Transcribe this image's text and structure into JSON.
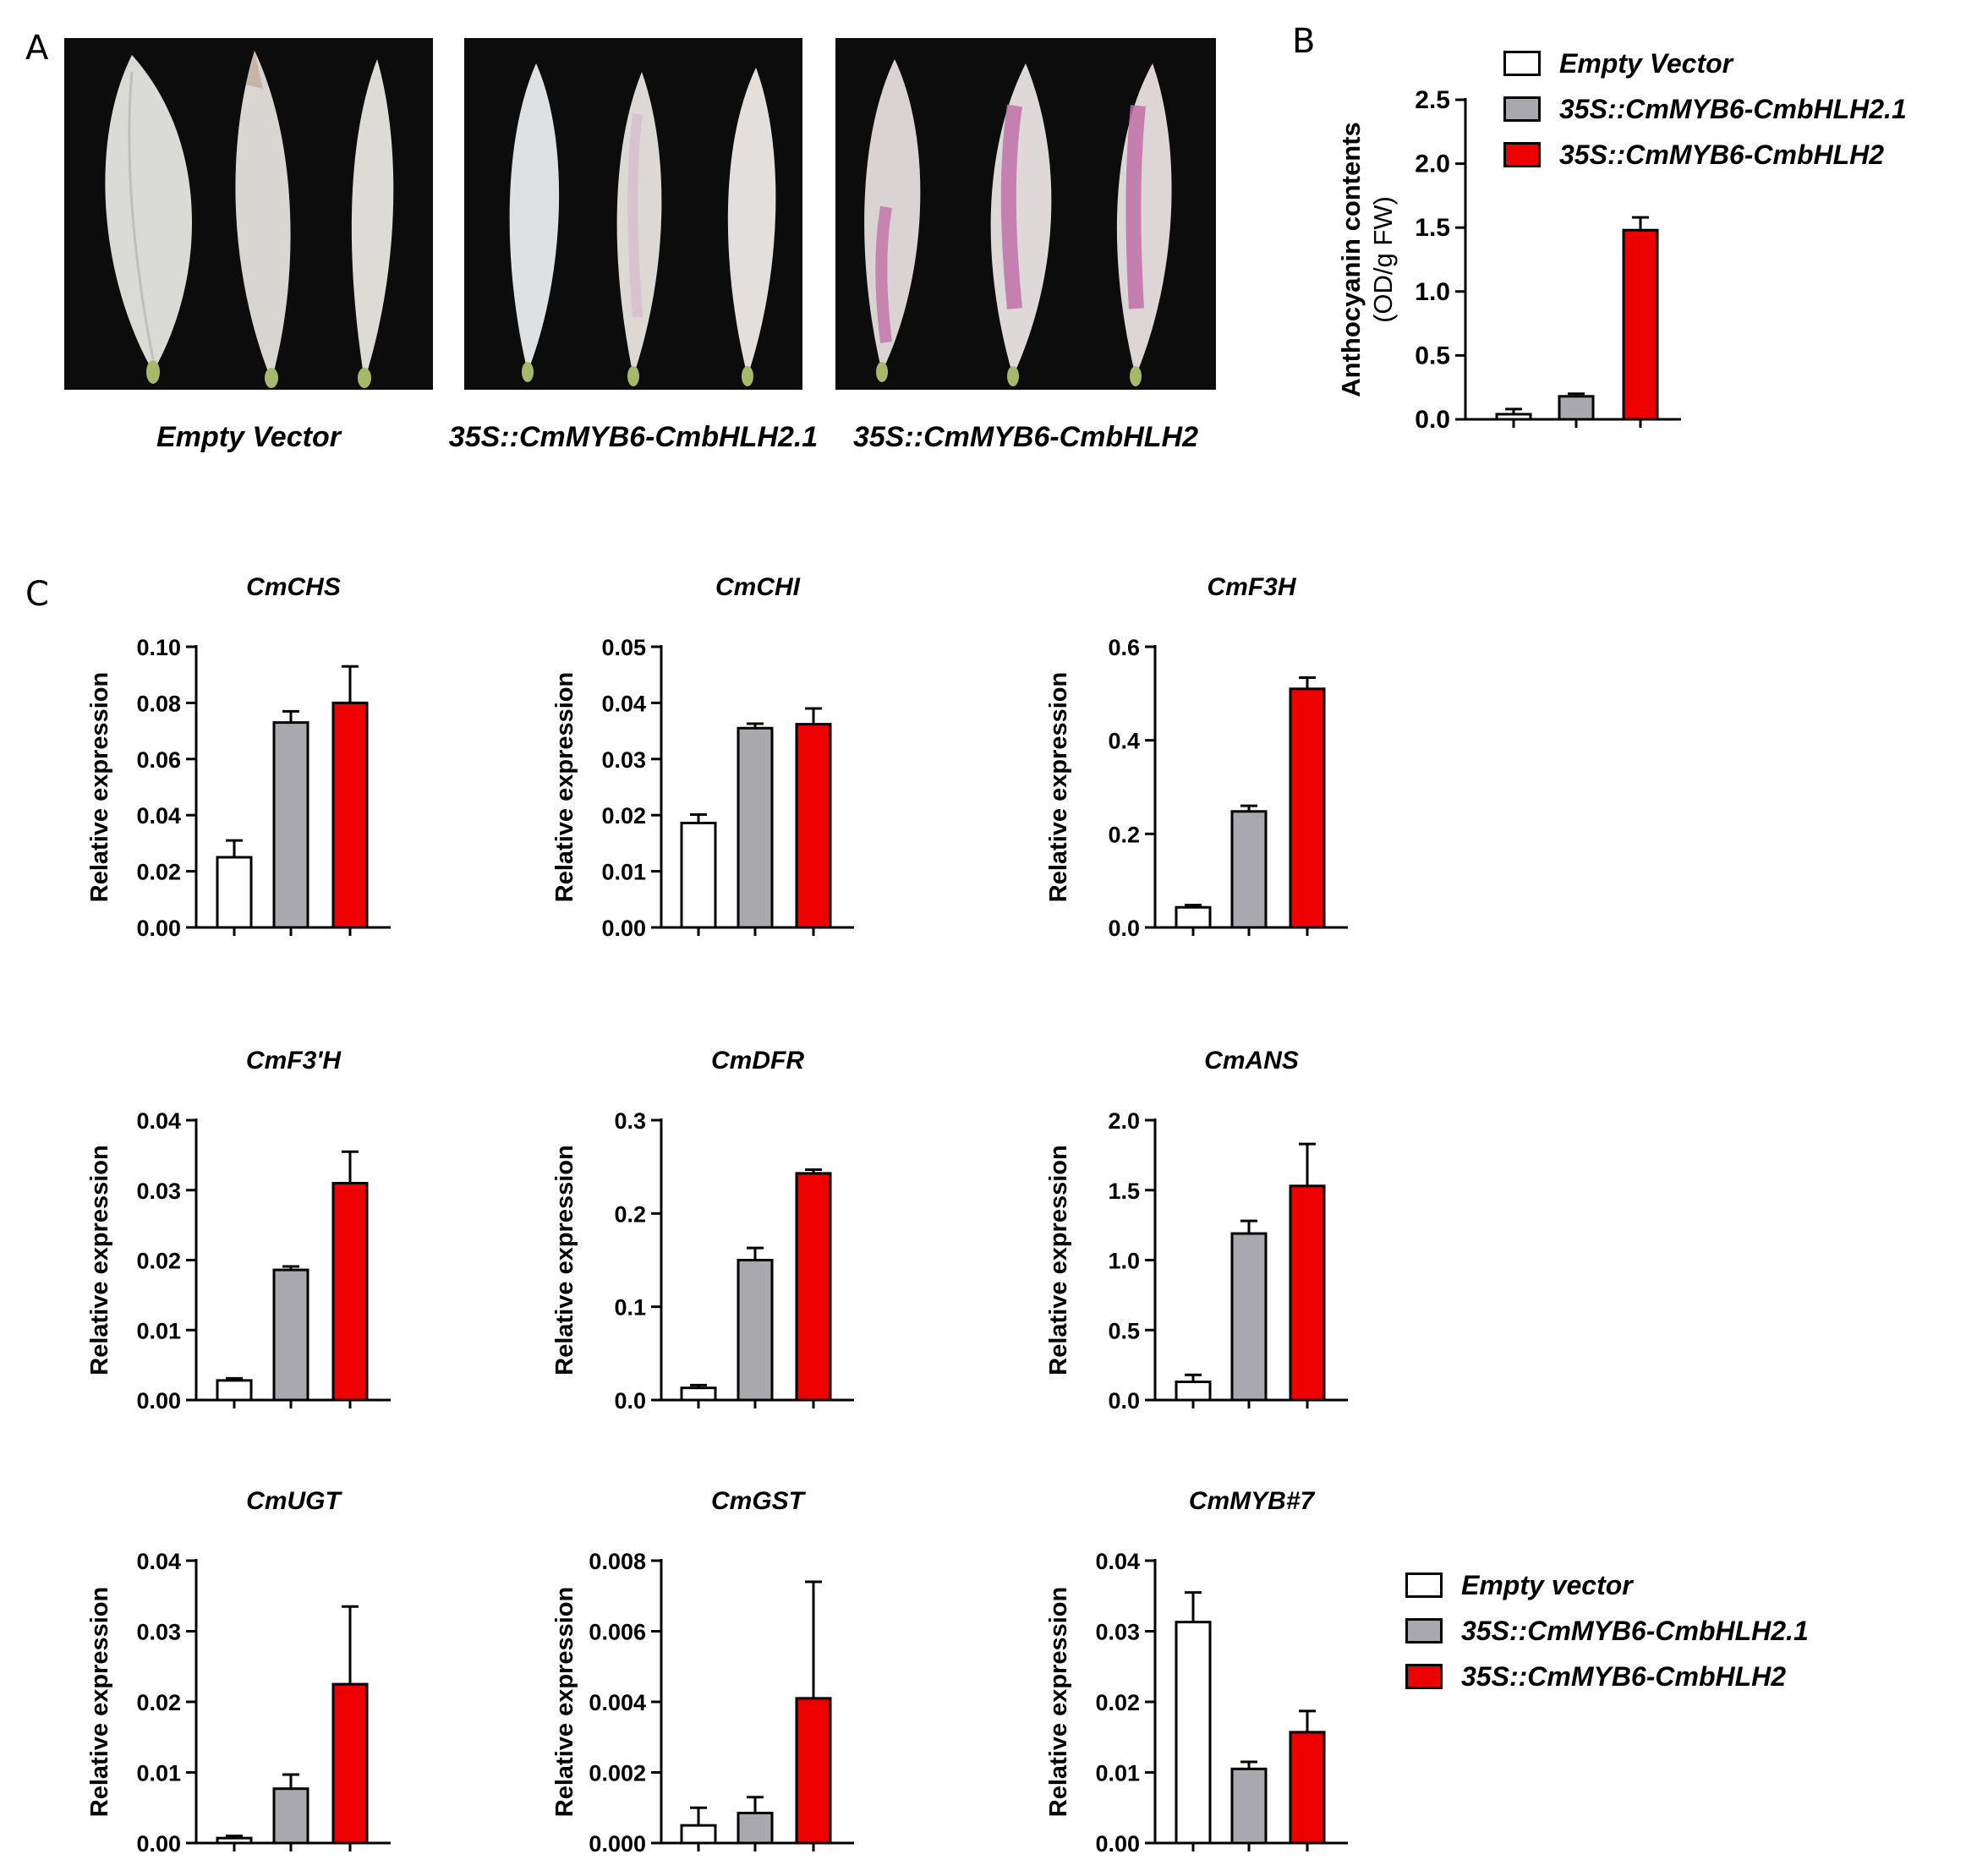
{
  "panel_labels": {
    "a": "A",
    "b": "B",
    "c": "C"
  },
  "photos": [
    {
      "label": "Empty Vector"
    },
    {
      "label": "35S::CmMYB6-CmbHLH2.1"
    },
    {
      "label": "35S::CmMYB6-CmbHLH2"
    }
  ],
  "legend_b": {
    "items": [
      {
        "label": "Empty Vector",
        "color": "#ffffff"
      },
      {
        "label": "35S::CmMYB6-CmbHLH2.1",
        "color": "#a9a9ad"
      },
      {
        "label": "35S::CmMYB6-CmbHLH2",
        "color": "#ee0000"
      }
    ]
  },
  "legend_c": {
    "items": [
      {
        "label": "Empty vector",
        "color": "#ffffff"
      },
      {
        "label": "35S::CmMYB6-CmbHLH2.1",
        "color": "#a9a9ad"
      },
      {
        "label": "35S::CmMYB6-CmbHLH2",
        "color": "#ee0000"
      }
    ]
  },
  "chart_data": [
    {
      "id": "B",
      "type": "bar",
      "title": "",
      "ylabel": [
        "Anthocyanin contents",
        "(OD/g FW)"
      ],
      "ylim": [
        0,
        2.5
      ],
      "ticks": [
        "0.0",
        "0.5",
        "1.0",
        "1.5",
        "2.0",
        "2.5"
      ],
      "values": [
        0.04,
        0.18,
        1.48
      ],
      "errors": [
        0.04,
        0.02,
        0.1
      ]
    },
    {
      "id": "CmCHS",
      "type": "bar",
      "title": "CmCHS",
      "ylabel": [
        "Relative expression"
      ],
      "ylim": [
        0,
        0.1
      ],
      "ticks": [
        "0.00",
        "0.02",
        "0.04",
        "0.06",
        "0.08",
        "0.10"
      ],
      "values": [
        0.025,
        0.073,
        0.08
      ],
      "errors": [
        0.006,
        0.004,
        0.013
      ]
    },
    {
      "id": "CmCHI",
      "type": "bar",
      "title": "CmCHI",
      "ylabel": [
        "Relative expression"
      ],
      "ylim": [
        0,
        0.05
      ],
      "ticks": [
        "0.00",
        "0.01",
        "0.02",
        "0.03",
        "0.04",
        "0.05"
      ],
      "values": [
        0.0186,
        0.0355,
        0.0362
      ],
      "errors": [
        0.0015,
        0.0008,
        0.0028
      ]
    },
    {
      "id": "CmF3H",
      "type": "bar",
      "title": "CmF3H",
      "ylabel": [
        "Relative expression"
      ],
      "ylim": [
        0,
        0.6
      ],
      "ticks": [
        "0.0",
        "0.2",
        "0.4",
        "0.6"
      ],
      "values": [
        0.043,
        0.248,
        0.51
      ],
      "errors": [
        0.005,
        0.012,
        0.024
      ]
    },
    {
      "id": "CmF3'H",
      "type": "bar",
      "title": "CmF3'H",
      "ylabel": [
        "Relative expression"
      ],
      "ylim": [
        0,
        0.04
      ],
      "ticks": [
        "0.00",
        "0.01",
        "0.02",
        "0.03",
        "0.04"
      ],
      "values": [
        0.0028,
        0.0186,
        0.031
      ],
      "errors": [
        0.0003,
        0.0005,
        0.0045
      ]
    },
    {
      "id": "CmDFR",
      "type": "bar",
      "title": "CmDFR",
      "ylabel": [
        "Relative expression"
      ],
      "ylim": [
        0,
        0.3
      ],
      "ticks": [
        "0.0",
        "0.1",
        "0.2",
        "0.3"
      ],
      "values": [
        0.013,
        0.15,
        0.243
      ],
      "errors": [
        0.003,
        0.013,
        0.004
      ]
    },
    {
      "id": "CmANS",
      "type": "bar",
      "title": "CmANS",
      "ylabel": [
        "Relative expression"
      ],
      "ylim": [
        0,
        2.0
      ],
      "ticks": [
        "0.0",
        "0.5",
        "1.0",
        "1.5",
        "2.0"
      ],
      "values": [
        0.13,
        1.19,
        1.53
      ],
      "errors": [
        0.05,
        0.09,
        0.3
      ]
    },
    {
      "id": "CmUGT",
      "type": "bar",
      "title": "CmUGT",
      "ylabel": [
        "Relative expression"
      ],
      "ylim": [
        0,
        0.04
      ],
      "ticks": [
        "0.00",
        "0.01",
        "0.02",
        "0.03",
        "0.04"
      ],
      "values": [
        0.0007,
        0.0077,
        0.0225
      ],
      "errors": [
        0.0003,
        0.002,
        0.011
      ]
    },
    {
      "id": "CmGST",
      "type": "bar",
      "title": "CmGST",
      "ylabel": [
        "Relative expression"
      ],
      "ylim": [
        0,
        0.008
      ],
      "ticks": [
        "0.000",
        "0.002",
        "0.004",
        "0.006",
        "0.008"
      ],
      "values": [
        0.0005,
        0.00085,
        0.0041
      ],
      "errors": [
        0.0005,
        0.00045,
        0.0033
      ]
    },
    {
      "id": "CmMYB#7",
      "type": "bar",
      "title": "CmMYB#7",
      "ylabel": [
        "Relative expression"
      ],
      "ylim": [
        0,
        0.04
      ],
      "ticks": [
        "0.00",
        "0.01",
        "0.02",
        "0.03",
        "0.04"
      ],
      "values": [
        0.0313,
        0.0105,
        0.0157
      ],
      "errors": [
        0.0042,
        0.001,
        0.003
      ]
    }
  ]
}
